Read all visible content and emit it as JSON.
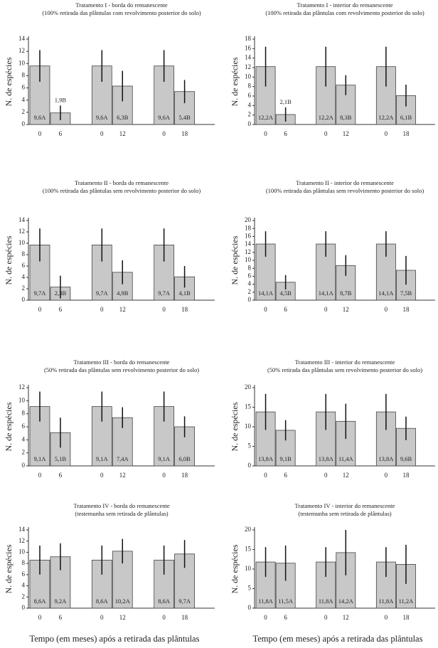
{
  "chart_data": [
    {
      "type": "bar",
      "title": "Tratamento I - borda do remanescente",
      "subtitle": "(100% retirada das plântulas com revolvimento posterior do solo)",
      "ylabel": "N. de espécies",
      "categories": [
        "0",
        "6",
        "0",
        "12",
        "0",
        "18"
      ],
      "values": [
        9.6,
        1.9,
        9.6,
        6.3,
        9.6,
        5.4
      ],
      "errors": [
        2.6,
        1.2,
        2.6,
        2.5,
        2.6,
        1.9
      ],
      "value_labels": [
        "9,6A",
        "1,9B",
        "9,6A",
        "6,3B",
        "9,6A",
        "5,4B"
      ],
      "ylim": [
        0,
        14
      ],
      "yticks": [
        0,
        2,
        4,
        6,
        8,
        10,
        12,
        14
      ],
      "color": "#c8c8c8"
    },
    {
      "type": "bar",
      "title": "Tratamento I - interior do remanescente",
      "subtitle": "(100% retirada das plântulas com revolvimento posterior do solo)",
      "ylabel": "N. de espécies",
      "categories": [
        "0",
        "6",
        "0",
        "12",
        "0",
        "18"
      ],
      "values": [
        12.2,
        2.1,
        12.2,
        8.3,
        12.2,
        6.1
      ],
      "errors": [
        4.2,
        1.5,
        4.2,
        2.1,
        4.2,
        2.3
      ],
      "value_labels": [
        "12,2A",
        "2,1B",
        "12,2A",
        "8,3B",
        "12,2A",
        "6,1B"
      ],
      "ylim": [
        0,
        18
      ],
      "yticks": [
        0,
        2,
        4,
        6,
        8,
        10,
        12,
        14,
        16,
        18
      ],
      "color": "#c8c8c8"
    },
    {
      "type": "bar",
      "title": "Tratamento II - borda do remanescente",
      "subtitle": "(100% retirada das plântulas sem revolvimento posterior do solo)",
      "ylabel": "N. de espécies",
      "categories": [
        "0",
        "6",
        "0",
        "12",
        "0",
        "18"
      ],
      "values": [
        9.7,
        2.3,
        9.7,
        4.9,
        9.7,
        4.1
      ],
      "errors": [
        2.9,
        2.0,
        2.9,
        2.1,
        2.9,
        1.9
      ],
      "value_labels": [
        "9,7A",
        "2,3B",
        "9,7A",
        "4,9B",
        "9,7A",
        "4,1B"
      ],
      "ylim": [
        0,
        14
      ],
      "yticks": [
        0,
        2,
        4,
        6,
        8,
        10,
        12,
        14
      ],
      "color": "#c8c8c8"
    },
    {
      "type": "bar",
      "title": "Tratamento II - interior do remanescente",
      "subtitle": "(100% retirada das plântulas sem revolvimento posterior do solo)",
      "ylabel": "N. de espécies",
      "categories": [
        "0",
        "6",
        "0",
        "12",
        "0",
        "18"
      ],
      "values": [
        14.1,
        4.5,
        14.1,
        8.7,
        14.1,
        7.5
      ],
      "errors": [
        3.2,
        1.8,
        3.2,
        2.6,
        3.2,
        3.6
      ],
      "value_labels": [
        "14,1A",
        "4,5B",
        "14,1A",
        "8,7B",
        "14,1A",
        "7,5B"
      ],
      "ylim": [
        0,
        20
      ],
      "yticks": [
        0,
        2,
        4,
        6,
        8,
        10,
        12,
        14,
        16,
        18,
        20
      ],
      "color": "#c8c8c8"
    },
    {
      "type": "bar",
      "title": "Tratamento III - borda do remanescente",
      "subtitle": "(50% retirada das plântulas sem revolvimento posterior do solo)",
      "ylabel": "N. de espécies",
      "categories": [
        "0",
        "6",
        "0",
        "12",
        "0",
        "18"
      ],
      "values": [
        9.1,
        5.1,
        9.1,
        7.4,
        9.1,
        6.0
      ],
      "errors": [
        2.3,
        2.3,
        2.3,
        1.6,
        2.3,
        1.6
      ],
      "value_labels": [
        "9,1A",
        "5,1B",
        "9,1A",
        "7,4A",
        "9,1A",
        "6,0B"
      ],
      "ylim": [
        0,
        12
      ],
      "yticks": [
        0,
        2,
        4,
        6,
        8,
        10,
        12
      ],
      "color": "#c8c8c8"
    },
    {
      "type": "bar",
      "title": "Tratamento III - interior do remanescente",
      "subtitle": "(50% retirada das plântulas sem revolvimento posterior do solo)",
      "ylabel": "N. de espécies",
      "categories": [
        "0",
        "6",
        "0",
        "12",
        "0",
        "18"
      ],
      "values": [
        13.8,
        9.1,
        13.8,
        11.4,
        13.8,
        9.6
      ],
      "errors": [
        4.6,
        2.6,
        4.6,
        4.5,
        4.6,
        3.0
      ],
      "value_labels": [
        "13,8A",
        "9,1B",
        "13,8A",
        "11,4A",
        "13,8A",
        "9,6B"
      ],
      "ylim": [
        0,
        20
      ],
      "yticks": [
        0,
        5,
        10,
        15,
        20
      ],
      "color": "#c8c8c8"
    },
    {
      "type": "bar",
      "title": "Tratamento IV - borda do remanescente",
      "subtitle": "(testemunha sem retirada de plântulas)",
      "ylabel": "N. de espécies",
      "xlabel": "Tempo (em meses) após a retirada das plântulas",
      "categories": [
        "0",
        "6",
        "0",
        "12",
        "0",
        "18"
      ],
      "values": [
        8.6,
        9.2,
        8.6,
        10.2,
        8.6,
        9.7
      ],
      "errors": [
        2.6,
        2.4,
        2.6,
        2.2,
        2.6,
        2.5
      ],
      "value_labels": [
        "8,6A",
        "9,2A",
        "8,6A",
        "10,2A",
        "8,6A",
        "9,7A"
      ],
      "ylim": [
        0,
        14
      ],
      "yticks": [
        0,
        2,
        4,
        6,
        8,
        10,
        12,
        14
      ],
      "color": "#c8c8c8"
    },
    {
      "type": "bar",
      "title": "Tratamento IV - interior do remanescente",
      "subtitle": "(testemunha sem retirada de plântulas)",
      "ylabel": "N. de espécies",
      "xlabel": "Tempo (em meses) após a retirada das plântulas",
      "categories": [
        "0",
        "6",
        "0",
        "12",
        "0",
        "18"
      ],
      "values": [
        11.8,
        11.5,
        11.8,
        14.2,
        11.8,
        11.2
      ],
      "errors": [
        3.8,
        4.5,
        3.8,
        5.8,
        3.8,
        5.0
      ],
      "value_labels": [
        "11,8A",
        "11,5A",
        "11,8A",
        "14,2A",
        "11,8A",
        "11,2A"
      ],
      "ylim": [
        0,
        20
      ],
      "yticks": [
        0,
        5,
        10,
        15,
        20
      ],
      "color": "#c8c8c8"
    }
  ]
}
